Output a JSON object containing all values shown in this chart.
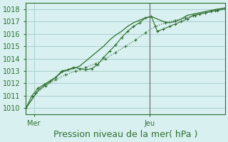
{
  "bg_color": "#d8f0f0",
  "grid_color": "#b0d0d0",
  "line_color": "#2d6e2d",
  "marker_color": "#2d6e2d",
  "axis_color": "#2d6e2d",
  "ylim": [
    1009.5,
    1018.5
  ],
  "yticks": [
    1010,
    1011,
    1012,
    1013,
    1014,
    1015,
    1016,
    1017,
    1018
  ],
  "xlabel": "Pression niveau de la mer( hPa )",
  "xlabel_fontsize": 9,
  "tick_fontsize": 7,
  "xtick_labels": [
    "Mer",
    "Jeu"
  ],
  "xtick_positions": [
    0.04,
    0.62
  ],
  "vline_x": 0.62,
  "line1_x": [
    0.0,
    0.03,
    0.06,
    0.09,
    0.12,
    0.15,
    0.18,
    0.21,
    0.24,
    0.27,
    0.3,
    0.33,
    0.36,
    0.39,
    0.42,
    0.45,
    0.48,
    0.51,
    0.54,
    0.57,
    0.6,
    0.63,
    0.66,
    0.69,
    0.72,
    0.75,
    0.78,
    0.81,
    0.84,
    0.87,
    0.9,
    0.93,
    0.96,
    1.0
  ],
  "line1_y": [
    1010.0,
    1010.7,
    1011.4,
    1011.8,
    1012.1,
    1012.5,
    1012.9,
    1013.1,
    1013.2,
    1013.4,
    1013.8,
    1014.2,
    1014.6,
    1015.0,
    1015.5,
    1015.9,
    1016.2,
    1016.6,
    1016.9,
    1017.1,
    1017.3,
    1017.4,
    1017.2,
    1017.0,
    1016.9,
    1017.0,
    1017.2,
    1017.5,
    1017.6,
    1017.7,
    1017.8,
    1017.9,
    1018.0,
    1018.1
  ],
  "line2_x": [
    0.0,
    0.03,
    0.06,
    0.09,
    0.12,
    0.15,
    0.18,
    0.21,
    0.24,
    0.27,
    0.3,
    0.33,
    0.36,
    0.39,
    0.42,
    0.45,
    0.48,
    0.51,
    0.54,
    0.57,
    0.6,
    0.63,
    0.66,
    0.69,
    0.72,
    0.75,
    0.78,
    0.81,
    0.84,
    0.87,
    0.9,
    0.93,
    0.96,
    1.0
  ],
  "line2_y": [
    1010.0,
    1011.0,
    1011.6,
    1011.9,
    1012.2,
    1012.5,
    1013.0,
    1013.1,
    1013.3,
    1013.2,
    1013.1,
    1013.2,
    1013.5,
    1014.1,
    1014.6,
    1015.1,
    1015.7,
    1016.2,
    1016.6,
    1016.9,
    1017.3,
    1017.4,
    1016.2,
    1016.4,
    1016.6,
    1016.8,
    1017.0,
    1017.2,
    1017.5,
    1017.6,
    1017.7,
    1017.8,
    1017.9,
    1018.0
  ],
  "line3_x": [
    0.0,
    0.05,
    0.1,
    0.15,
    0.2,
    0.25,
    0.3,
    0.35,
    0.4,
    0.45,
    0.5,
    0.55,
    0.6,
    0.65,
    0.7,
    0.75,
    0.8,
    0.85,
    0.9,
    0.95,
    1.0
  ],
  "line3_y": [
    1010.0,
    1011.2,
    1011.8,
    1012.3,
    1012.7,
    1013.0,
    1013.3,
    1013.6,
    1014.0,
    1014.5,
    1015.0,
    1015.5,
    1016.1,
    1016.6,
    1016.9,
    1017.1,
    1017.3,
    1017.5,
    1017.7,
    1017.9,
    1018.1
  ]
}
